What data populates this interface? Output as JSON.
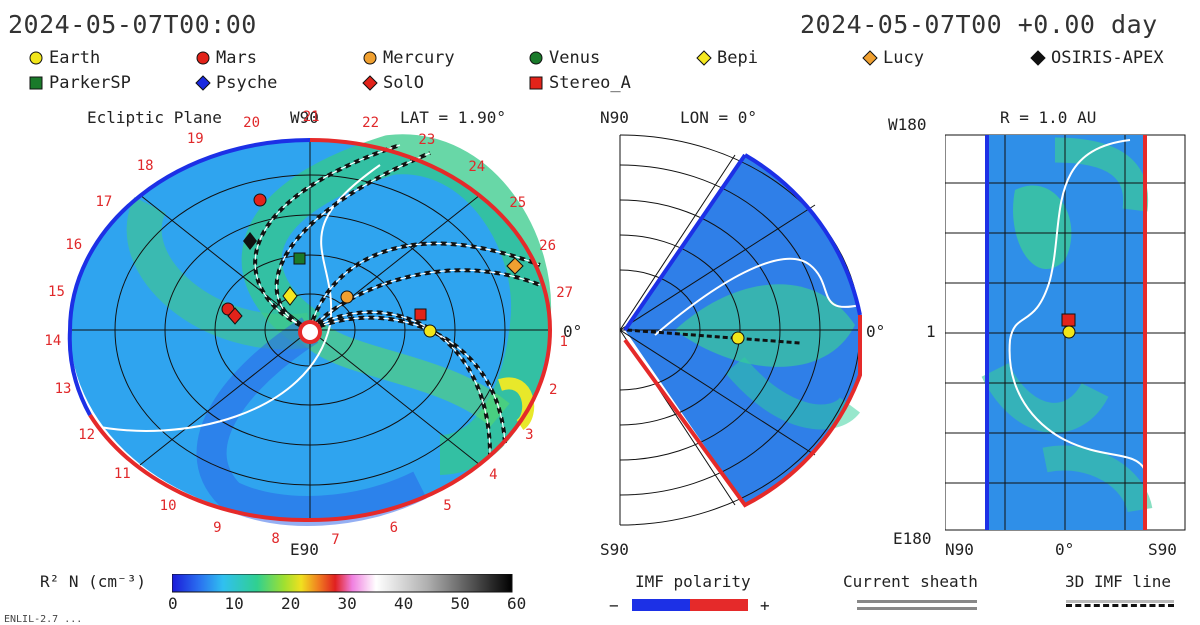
{
  "header": {
    "datetime_left": "2024-05-07T00:00",
    "datetime_right": "2024-05-07T00 +0.00 day"
  },
  "legend": [
    {
      "name": "Earth",
      "shape": "circle",
      "color": "#f2e61a"
    },
    {
      "name": "Mars",
      "shape": "circle",
      "color": "#e2231a"
    },
    {
      "name": "Mercury",
      "shape": "circle",
      "color": "#f0a030"
    },
    {
      "name": "Venus",
      "shape": "circle",
      "color": "#1a7a2a"
    },
    {
      "name": "Bepi",
      "shape": "diamond",
      "color": "#f5e81e"
    },
    {
      "name": "Lucy",
      "shape": "diamond",
      "color": "#f0a030"
    },
    {
      "name": "OSIRIS-APEX",
      "shape": "diamond",
      "color": "#111111"
    },
    {
      "name": "ParkerSP",
      "shape": "square",
      "color": "#1a7a2a"
    },
    {
      "name": "Psyche",
      "shape": "diamond",
      "color": "#1a2ae0"
    },
    {
      "name": "SolO",
      "shape": "diamond",
      "color": "#e2231a"
    },
    {
      "name": "Stereo_A",
      "shape": "square",
      "color": "#e2231a"
    }
  ],
  "ecliptic": {
    "title": "Ecliptic Plane",
    "top_label": "W90",
    "bottom_label": "E90",
    "lat": "LAT = 1.90°",
    "right_label": "0°",
    "carrington_numbers": [
      "20",
      "21",
      "22",
      "23",
      "24",
      "25",
      "26",
      "27",
      "1",
      "2",
      "3",
      "4",
      "5",
      "6",
      "7",
      "8",
      "9",
      "10",
      "11",
      "12",
      "13",
      "14",
      "15",
      "16",
      "17",
      "18",
      "19"
    ]
  },
  "meridional": {
    "top_label": "N90",
    "lon": "LON = 0°",
    "bottom_label": "S90",
    "right_label": "0°"
  },
  "surface": {
    "top_label": "W180",
    "r": "R = 1.0 AU",
    "left_mid": "1",
    "bottom_left": "E180",
    "x_left": "N90",
    "x_mid": "0°",
    "x_right": "S90"
  },
  "colorbar": {
    "label": "R² N (cm⁻³)",
    "ticks": [
      "0",
      "10",
      "20",
      "30",
      "40",
      "50",
      "60"
    ]
  },
  "imf": {
    "label": "IMF polarity",
    "minus": "−",
    "plus": "+"
  },
  "sheath": {
    "label": "Current sheath"
  },
  "imf_line": {
    "label": "3D IMF line"
  },
  "footer": "ENLIL-2.7 ..."
}
